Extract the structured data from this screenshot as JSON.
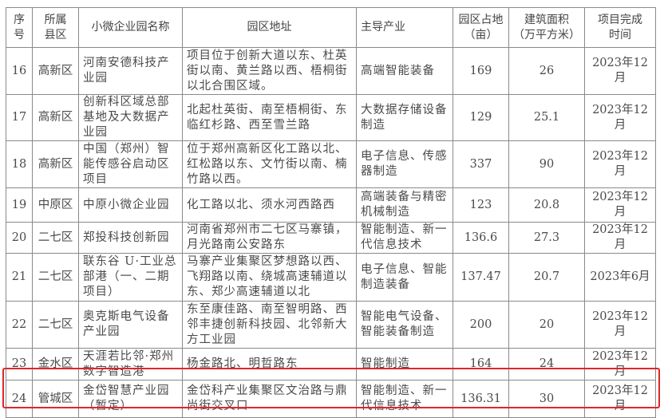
{
  "headers": [
    "序号",
    "所属县区",
    "小微企业园名称",
    "园区地址",
    "主导产业",
    "园区占地（亩）",
    "建筑面积（万平方米）",
    "项目完成时间"
  ],
  "header_lines": {
    "no": [
      "序",
      "号"
    ],
    "district": [
      "所属",
      "县区"
    ],
    "name": "小微企业园名称",
    "address": "园区地址",
    "industry": "主导产业",
    "area": [
      "园区占地",
      "（亩）"
    ],
    "floor": [
      "建筑面积",
      "（万平方米）"
    ],
    "finish": [
      "项目完成",
      "时间"
    ]
  },
  "rows": [
    {
      "no": "16",
      "district": "高新区",
      "name": "河南安德科技产业园",
      "address": "项目位于创新大道以东、杜英街以南、黄兰路以西、梧桐街以北合围区域。",
      "industry": "高端智能装备",
      "area": "169",
      "floor": "26",
      "finish": "2023年12月"
    },
    {
      "no": "17",
      "district": "高新区",
      "name": "创新科区域总部基地及大数据产业园",
      "address": "北起杜英街、南至梧桐街、东临红杉路、西至雪兰路",
      "industry": "大数据存储设备制造",
      "area": "129",
      "floor": "25.1",
      "finish": "2023年12月"
    },
    {
      "no": "18",
      "district": "高新区",
      "name": "中国（郑州）智能传感谷启动区项目",
      "address": "位于郑州高新区化工路以北、红松路以东、文竹街以南、楠竹路以西。",
      "industry": "电子信息、传感器制造",
      "area": "337",
      "floor": "90",
      "finish": "2023年12月"
    },
    {
      "no": "19",
      "district": "中原区",
      "name": "中原小微企业园",
      "address": "化工路以北、须水河西路西",
      "industry": "高端装备与精密机械制造",
      "area": "123",
      "floor": "20.8",
      "finish": "2023年12月"
    },
    {
      "no": "20",
      "district": "二七区",
      "name": "郑投科技创新园",
      "address": "河南省郑州市二七区马寨镇，月光路南公安路东",
      "industry": "智能制造、新一代信息技术",
      "area": "136.6",
      "floor": "27.3",
      "finish": "2023年12月"
    },
    {
      "no": "21",
      "district": "二七区",
      "name": "联东谷 U·工业总部港（一、二期项目）",
      "address": "马寨产业集聚区梦想路以西、飞翔路以南、绕城高速辅道以东、郑少高速辅道以北",
      "industry": "电子信息、智能制造装备",
      "area": "137.47",
      "floor": "20.7",
      "finish": "2023年6月"
    },
    {
      "no": "22",
      "district": "二七区",
      "name": "奥克斯电气设备产业园",
      "address": "东至康佳路、南至智明路、西邻丰捷创新科技园、北邻新大方工业园",
      "industry": "智能电气设备、智能装备制造",
      "area": "200",
      "floor": "20",
      "finish": "2023年12月"
    },
    {
      "no": "23",
      "district": "金水区",
      "name": "天涯若比邻·郑州数字智造港",
      "address": "杨金路北、明哲路东",
      "industry": "智能制造",
      "area": "164",
      "floor": "24",
      "finish": "2023年12月"
    },
    {
      "no": "24",
      "district": "管城区",
      "name": "金岱智慧产业园（暂定）",
      "address": "金岱科产业集聚区文治路与鼎尚街交叉口",
      "industry": "智能制造、新一代信息技术",
      "area": "136.31",
      "floor": "30",
      "finish": "2023年12月"
    }
  ],
  "highlight": {
    "row_no": "24",
    "color": "#e0262a"
  }
}
